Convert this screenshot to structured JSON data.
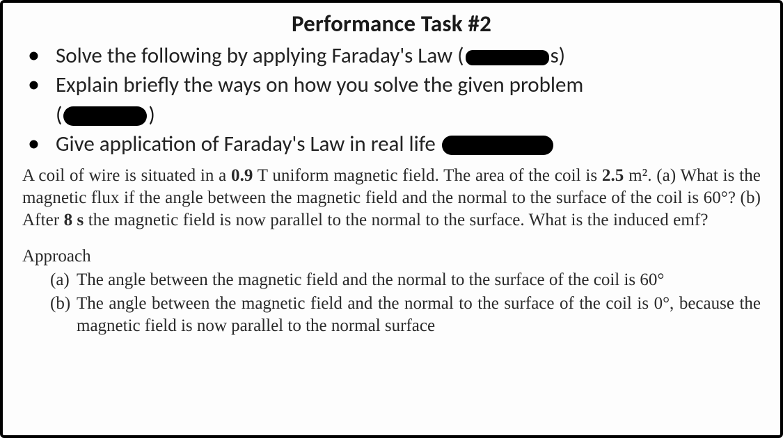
{
  "title": "Performance Task #2",
  "instructions": [
    {
      "pre": "Solve the following by applying Faraday's Law (",
      "post": "s)"
    },
    {
      "pre": "Explain briefly the ways on how you solve the given problem",
      "post": ""
    },
    {
      "pre": "Give application of Faraday's Law in real life ",
      "post": ""
    }
  ],
  "paren_line": {
    "open": "(",
    "close": ")"
  },
  "problem": {
    "values": {
      "B": "0.9",
      "A": "2.5",
      "angle": "60°",
      "time": "8 s"
    },
    "seg1": "A coil of wire is situated in a ",
    "seg2": " T uniform magnetic field. The area of the coil is ",
    "seg3": " m². (a) What is the magnetic flux if the angle between the magnetic field and the normal to the surface of the coil is ",
    "seg4": "? (b) After ",
    "seg5": " the magnetic field is now parallel to the normal to the surface. What is the induced emf?"
  },
  "approach": {
    "title": "Approach",
    "items": [
      {
        "label": "(a)",
        "text": "The angle between the magnetic field and the normal to the surface of the coil is 60°"
      },
      {
        "label": "(b)",
        "text": "The angle between the magnetic field and the normal to the surface of the coil is 0°, because the magnetic field is now parallel to the normal surface"
      }
    ]
  }
}
